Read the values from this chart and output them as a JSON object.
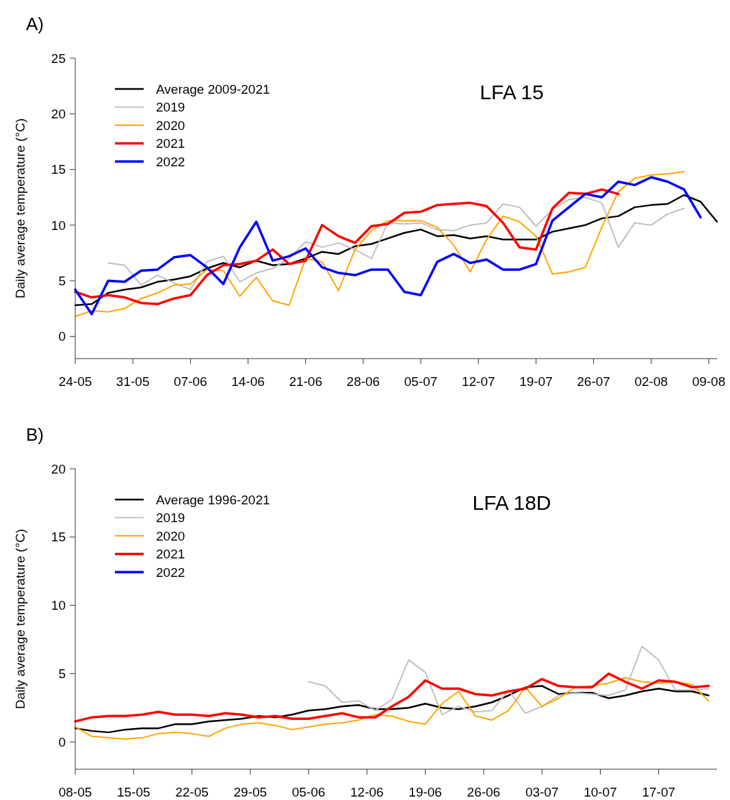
{
  "chart_data": [
    {
      "type": "line",
      "title": "A)",
      "subtitle": "LFA 15",
      "ylabel": "Daily average temperature (°C)",
      "legend": "top left",
      "x": [
        "--05-24",
        "--05-26",
        "--05-28",
        "--05-30",
        "--06-01",
        "--06-03",
        "--06-05",
        "--06-07",
        "--06-09",
        "--06-11",
        "--06-13",
        "--06-15",
        "--06-17",
        "--06-19",
        "--06-21",
        "--06-23",
        "--06-25",
        "--06-27",
        "--06-29",
        "--07-01",
        "--07-03",
        "--07-05",
        "--07-07",
        "--07-09",
        "--07-11",
        "--07-13",
        "--07-15",
        "--07-17",
        "--07-19",
        "--07-21",
        "--07-23",
        "--07-25",
        "--07-27",
        "--07-29",
        "--07-31",
        "--08-02",
        "--08-04",
        "--08-06",
        "--08-08",
        "--08-10"
      ],
      "xlim": [
        "--05-24",
        "--08-10"
      ],
      "xticks": [
        {
          "value": "--05-24",
          "label": "24-05"
        },
        {
          "value": "--05-31",
          "label": "31-05"
        },
        {
          "value": "--06-07",
          "label": "07-06"
        },
        {
          "value": "--06-14",
          "label": "14-06"
        },
        {
          "value": "--06-21",
          "label": "21-06"
        },
        {
          "value": "--06-28",
          "label": "28-06"
        },
        {
          "value": "--07-05",
          "label": "05-07"
        },
        {
          "value": "--07-12",
          "label": "12-07"
        },
        {
          "value": "--07-19",
          "label": "19-07"
        },
        {
          "value": "--07-26",
          "label": "26-07"
        },
        {
          "value": "--08-02",
          "label": "02-08"
        },
        {
          "value": "--08-09",
          "label": "09-08"
        }
      ],
      "ylim": [
        -2,
        25
      ],
      "yticks": [
        0,
        5,
        10,
        15,
        20,
        25
      ],
      "series": [
        {
          "name": "Average 2009-2021",
          "color": "#000000",
          "values": [
            2.8,
            2.9,
            3.9,
            4.2,
            4.4,
            4.9,
            5.1,
            5.4,
            6.1,
            6.6,
            6.2,
            6.8,
            6.4,
            6.5,
            7.0,
            7.6,
            7.4,
            8.1,
            8.3,
            8.8,
            9.3,
            9.6,
            9.0,
            9.1,
            8.8,
            9.0,
            8.7,
            8.7,
            8.7,
            9.4,
            9.7,
            10.0,
            10.6,
            10.8,
            11.6,
            11.8,
            11.9,
            12.7,
            12.1,
            10.3
          ]
        },
        {
          "name": "2019",
          "color": "#c0c0c0",
          "values": [
            null,
            null,
            6.6,
            6.4,
            4.6,
            5.5,
            4.8,
            4.2,
            6.7,
            7.2,
            4.9,
            5.7,
            6.1,
            7.0,
            8.5,
            8.0,
            8.4,
            7.8,
            7.0,
            10.2,
            10.1,
            10.2,
            9.6,
            9.5,
            10.0,
            10.2,
            11.9,
            11.6,
            9.9,
            11.4,
            12.3,
            12.5,
            12.0,
            8.0,
            10.2,
            10.0,
            11.0,
            11.5,
            null,
            null
          ]
        },
        {
          "name": "2020",
          "color": "#ffa500",
          "values": [
            1.8,
            2.3,
            2.2,
            2.5,
            3.4,
            3.9,
            4.6,
            4.7,
            6.0,
            5.9,
            3.6,
            5.3,
            3.2,
            2.8,
            7.0,
            6.7,
            4.1,
            7.8,
            9.5,
            10.4,
            10.4,
            10.4,
            9.8,
            8.2,
            5.8,
            8.7,
            10.8,
            10.3,
            9.0,
            5.6,
            5.8,
            6.2,
            9.8,
            13.0,
            14.2,
            14.5,
            14.6,
            14.8,
            null,
            null
          ]
        },
        {
          "name": "2021",
          "color": "#ff0000",
          "values": [
            4.0,
            3.5,
            3.7,
            3.5,
            3.0,
            2.9,
            3.4,
            3.7,
            5.5,
            6.4,
            6.5,
            6.8,
            7.8,
            6.5,
            6.8,
            10.0,
            9.0,
            8.4,
            9.9,
            10.1,
            11.1,
            11.2,
            11.8,
            11.9,
            12.0,
            11.7,
            10.2,
            8.0,
            7.8,
            11.5,
            12.9,
            12.8,
            13.2,
            12.8,
            null,
            null,
            null,
            null,
            null,
            null
          ]
        },
        {
          "name": "2022",
          "color": "#0000ff",
          "values": [
            4.2,
            2.0,
            5.0,
            4.9,
            5.9,
            6.0,
            7.1,
            7.3,
            6.2,
            4.7,
            8.0,
            10.3,
            6.8,
            7.2,
            7.9,
            6.2,
            5.7,
            5.5,
            6.0,
            6.0,
            4.0,
            3.7,
            6.7,
            7.4,
            6.6,
            6.9,
            6.0,
            6.0,
            6.5,
            10.4,
            11.6,
            12.8,
            12.5,
            13.9,
            13.6,
            14.3,
            13.9,
            13.2,
            10.7,
            null
          ]
        }
      ]
    },
    {
      "type": "line",
      "title": "B)",
      "subtitle": "LFA 18D",
      "ylabel": "Daily average temperature (°C)",
      "legend": "top left",
      "x": [
        "--05-08",
        "--05-10",
        "--05-12",
        "--05-14",
        "--05-16",
        "--05-18",
        "--05-20",
        "--05-22",
        "--05-24",
        "--05-26",
        "--05-28",
        "--05-30",
        "--06-01",
        "--06-03",
        "--06-05",
        "--06-07",
        "--06-09",
        "--06-11",
        "--06-13",
        "--06-15",
        "--06-17",
        "--06-19",
        "--06-21",
        "--06-23",
        "--06-25",
        "--06-27",
        "--06-29",
        "--07-01",
        "--07-03",
        "--07-05",
        "--07-07",
        "--07-09",
        "--07-11",
        "--07-13",
        "--07-15",
        "--07-17",
        "--07-19",
        "--07-21",
        "--07-23"
      ],
      "xlim": [
        "--05-08",
        "--07-24"
      ],
      "xticks": [
        {
          "value": "--05-08",
          "label": "08-05"
        },
        {
          "value": "--05-15",
          "label": "15-05"
        },
        {
          "value": "--05-22",
          "label": "22-05"
        },
        {
          "value": "--05-29",
          "label": "29-05"
        },
        {
          "value": "--06-05",
          "label": "05-06"
        },
        {
          "value": "--06-12",
          "label": "12-06"
        },
        {
          "value": "--06-19",
          "label": "19-06"
        },
        {
          "value": "--06-26",
          "label": "26-06"
        },
        {
          "value": "--07-03",
          "label": "03-07"
        },
        {
          "value": "--07-10",
          "label": "10-07"
        },
        {
          "value": "--07-17",
          "label": "17-07"
        }
      ],
      "ylim": [
        -2,
        20
      ],
      "yticks": [
        0,
        5,
        10,
        15,
        20
      ],
      "series": [
        {
          "name": "Average 1996-2021",
          "color": "#000000",
          "values": [
            1.0,
            0.8,
            0.7,
            0.9,
            1.0,
            1.0,
            1.3,
            1.3,
            1.5,
            1.6,
            1.7,
            1.9,
            1.8,
            2.0,
            2.3,
            2.4,
            2.6,
            2.7,
            2.4,
            2.4,
            2.5,
            2.8,
            2.5,
            2.4,
            2.6,
            2.9,
            3.4,
            4.0,
            4.1,
            3.5,
            3.6,
            3.6,
            3.2,
            3.4,
            3.7,
            3.9,
            3.7,
            3.7,
            3.4
          ]
        },
        {
          "name": "2019",
          "color": "#c0c0c0",
          "values": [
            null,
            null,
            null,
            null,
            null,
            null,
            null,
            null,
            null,
            null,
            null,
            null,
            null,
            null,
            4.4,
            4.1,
            2.9,
            3.0,
            2.3,
            3.1,
            6.0,
            5.1,
            2.0,
            2.6,
            2.2,
            2.3,
            3.8,
            2.1,
            2.6,
            3.4,
            3.6,
            3.5,
            3.4,
            3.8,
            7.0,
            6.0,
            3.8,
            3.8,
            3.9
          ]
        },
        {
          "name": "2020",
          "color": "#ffa500",
          "values": [
            1.1,
            0.4,
            0.3,
            0.2,
            0.3,
            0.6,
            0.7,
            0.6,
            0.4,
            1.0,
            1.3,
            1.4,
            1.2,
            0.9,
            1.1,
            1.3,
            1.4,
            1.6,
            2.0,
            1.9,
            1.5,
            1.3,
            2.8,
            3.7,
            1.9,
            1.6,
            2.3,
            4.0,
            2.6,
            3.2,
            4.0,
            4.1,
            4.3,
            4.7,
            4.4,
            4.3,
            4.4,
            4.2,
            3.0
          ]
        },
        {
          "name": "2021",
          "color": "#ff0000",
          "values": [
            1.5,
            1.8,
            1.9,
            1.9,
            2.0,
            2.2,
            2.0,
            2.0,
            1.9,
            2.1,
            2.0,
            1.8,
            1.9,
            1.7,
            1.7,
            1.9,
            2.1,
            1.8,
            1.8,
            2.6,
            3.3,
            4.5,
            3.9,
            3.9,
            3.5,
            3.4,
            3.7,
            3.9,
            4.6,
            4.1,
            4.0,
            4.0,
            5.0,
            4.4,
            3.9,
            4.5,
            4.4,
            4.0,
            4.1
          ]
        },
        {
          "name": "2022",
          "color": "#0000ff",
          "values": [
            null,
            null,
            null,
            null,
            null,
            null,
            null,
            null,
            null,
            null,
            null,
            null,
            null,
            null,
            null,
            null,
            null,
            null,
            null,
            null,
            null,
            null,
            null,
            null,
            null,
            null,
            null,
            null,
            null,
            null,
            null,
            null,
            null,
            null,
            null,
            null,
            null,
            null,
            null
          ]
        }
      ]
    }
  ]
}
